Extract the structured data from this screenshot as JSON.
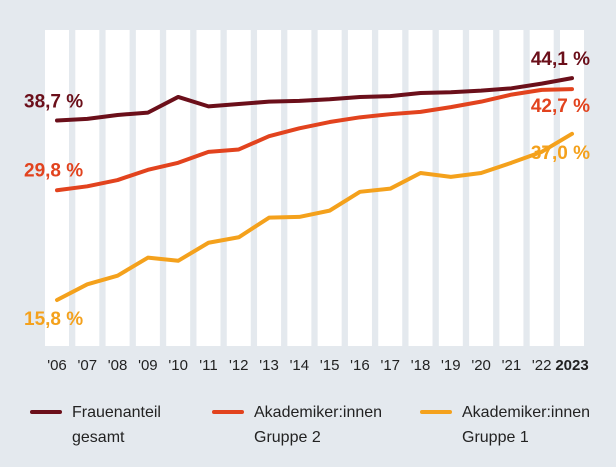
{
  "chart_data": {
    "type": "line",
    "categories": [
      "'06",
      "'07",
      "'08",
      "'09",
      "'10",
      "'11",
      "'12",
      "'13",
      "'14",
      "'15",
      "'16",
      "'17",
      "'18",
      "'19",
      "'20",
      "'21",
      "'22",
      "2023"
    ],
    "series": [
      {
        "name": "Frauenanteil gesamt",
        "color": "#6b0f1a",
        "values": [
          38.7,
          38.9,
          39.4,
          39.7,
          41.7,
          40.5,
          40.8,
          41.1,
          41.2,
          41.4,
          41.7,
          41.8,
          42.2,
          42.3,
          42.5,
          42.8,
          43.4,
          44.1
        ],
        "value_labels": [
          "38,7 %",
          null,
          null,
          null,
          null,
          null,
          null,
          null,
          null,
          null,
          null,
          null,
          null,
          null,
          null,
          null,
          null,
          "44,1 %"
        ]
      },
      {
        "name": "Akademiker:innen Gruppe 2",
        "color": "#e2431e",
        "values": [
          29.8,
          30.3,
          31.1,
          32.4,
          33.3,
          34.7,
          35.0,
          36.7,
          37.7,
          38.5,
          39.1,
          39.5,
          39.8,
          40.4,
          41.1,
          42.0,
          42.6,
          42.7
        ],
        "value_labels": [
          "29,8 %",
          null,
          null,
          null,
          null,
          null,
          null,
          null,
          null,
          null,
          null,
          null,
          null,
          null,
          null,
          null,
          null,
          "42,7 %"
        ]
      },
      {
        "name": "Akademiker:innen Gruppe 1",
        "color": "#f4a11c",
        "values": [
          15.8,
          17.8,
          18.9,
          21.2,
          20.8,
          23.1,
          23.8,
          26.3,
          26.4,
          27.2,
          29.6,
          30.0,
          32.0,
          31.5,
          32.0,
          33.3,
          34.7,
          37.0
        ],
        "value_labels": [
          "15,8 %",
          null,
          null,
          null,
          null,
          null,
          null,
          null,
          null,
          null,
          null,
          null,
          null,
          null,
          null,
          null,
          null,
          "37,0 %"
        ]
      }
    ]
  }
}
